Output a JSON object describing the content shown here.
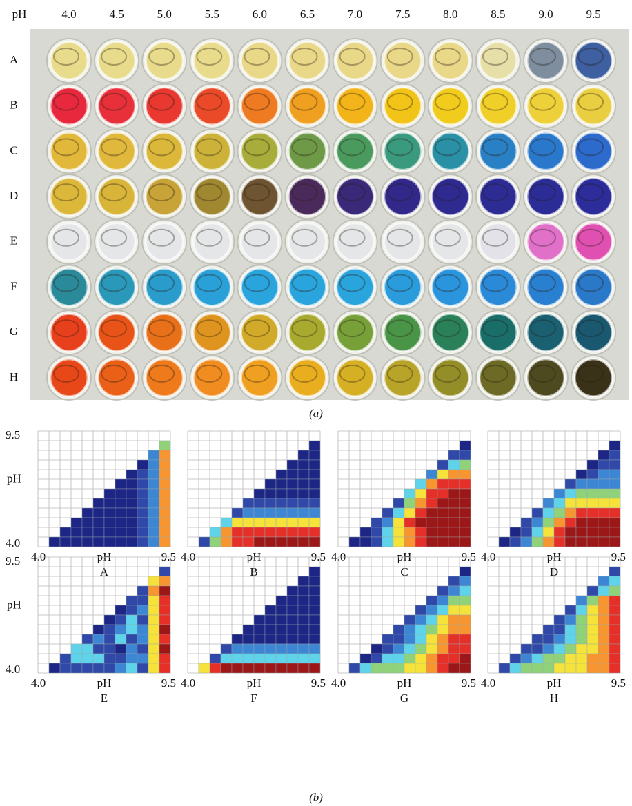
{
  "plate": {
    "corner": "pH",
    "ph_labels": [
      "4.0",
      "4.5",
      "5.0",
      "5.5",
      "6.0",
      "6.5",
      "7.0",
      "7.5",
      "8.0",
      "8.5",
      "9.0",
      "9.5"
    ],
    "rows": [
      {
        "label": "A",
        "wells": [
          "#e8dc8c",
          "#e8dc8c",
          "#e8dc8c",
          "#e8dc8c",
          "#e8d888",
          "#e8d888",
          "#e8d888",
          "#e8d888",
          "#e8d888",
          "#e6dfa8",
          "#7e8e9e",
          "#3e5fa0"
        ]
      },
      {
        "label": "B",
        "wells": [
          "#e8283c",
          "#e8303a",
          "#e83830",
          "#ea4a28",
          "#ee7a22",
          "#f0a020",
          "#f2b418",
          "#f2c418",
          "#f2cc1c",
          "#f0d028",
          "#eed03a",
          "#e8ce40"
        ]
      },
      {
        "label": "C",
        "wells": [
          "#e2b83a",
          "#e0b83c",
          "#dcb83a",
          "#cdb23a",
          "#a8ac3a",
          "#6e9a48",
          "#4a9a5e",
          "#3a9a7e",
          "#2a90a6",
          "#2a80c4",
          "#2a78cc",
          "#2c6acc"
        ]
      },
      {
        "label": "D",
        "wells": [
          "#dcb83a",
          "#d8b438",
          "#c8a438",
          "#a08830",
          "#6e5430",
          "#4a2a5a",
          "#3a2878",
          "#32288a",
          "#2e2a90",
          "#2c2c94",
          "#2c2c96",
          "#2c2c9a"
        ]
      },
      {
        "label": "E",
        "wells": [
          "#e4e6e8",
          "#e4e6e8",
          "#e4e6e8",
          "#e4e6e8",
          "#e4e6e8",
          "#e4e6e8",
          "#e4e6e8",
          "#e4e6e8",
          "#e4e6e8",
          "#e2e2e8",
          "#e070c8",
          "#e050b0"
        ]
      },
      {
        "label": "F",
        "wells": [
          "#2a8a9a",
          "#2a98b8",
          "#2a9ccc",
          "#2aa0d8",
          "#2aa4dc",
          "#2aa4dc",
          "#2aa4dc",
          "#2a9cdc",
          "#2a94dc",
          "#2a8ad8",
          "#2a80d0",
          "#2a78c8"
        ]
      },
      {
        "label": "G",
        "wells": [
          "#e8401c",
          "#e85418",
          "#e87018",
          "#e09420",
          "#d0aa28",
          "#a8aa30",
          "#78a038",
          "#4a9448",
          "#2a8058",
          "#1a6e6a",
          "#1a6070",
          "#1a5870"
        ]
      },
      {
        "label": "H",
        "wells": [
          "#e84818",
          "#ea6018",
          "#ee7a1c",
          "#f08c20",
          "#f0a020",
          "#e8ae20",
          "#d6b024",
          "#b8a428",
          "#948e28",
          "#6c6a24",
          "#4e4a20",
          "#3a3218"
        ]
      }
    ]
  },
  "captions": {
    "a": "(a)",
    "b": "(b)"
  },
  "heatmaps": {
    "axis": {
      "low": "4.0",
      "high": "9.5",
      "title": "pH"
    },
    "colormap": [
      "#1d2585",
      "#3048a8",
      "#3c86d4",
      "#5ed3ea",
      "#8fd27a",
      "#f5e23a",
      "#f79530",
      "#e5302a",
      "#9c1717"
    ],
    "panels": [
      {
        "label": "A",
        "rows": [
          [],
          [
            4
          ],
          [
            2,
            6
          ],
          [
            0,
            2,
            6
          ],
          [
            0,
            1,
            2,
            6
          ],
          [
            0,
            0,
            1,
            2,
            6
          ],
          [
            0,
            0,
            0,
            1,
            2,
            6
          ],
          [
            0,
            0,
            0,
            0,
            1,
            2,
            6
          ],
          [
            0,
            0,
            0,
            0,
            0,
            1,
            2,
            6
          ],
          [
            0,
            0,
            0,
            0,
            0,
            0,
            1,
            2,
            6
          ],
          [
            0,
            0,
            0,
            0,
            0,
            0,
            0,
            1,
            2,
            6
          ],
          [
            0,
            0,
            0,
            0,
            0,
            0,
            0,
            0,
            1,
            2,
            6
          ]
        ]
      },
      {
        "label": "B",
        "rows": [
          [],
          [
            0
          ],
          [
            0,
            0
          ],
          [
            0,
            0,
            0
          ],
          [
            0,
            0,
            0,
            0
          ],
          [
            0,
            0,
            0,
            0,
            0
          ],
          [
            0,
            0,
            0,
            0,
            0,
            0
          ],
          [
            1,
            1,
            1,
            1,
            1,
            1,
            1
          ],
          [
            1,
            2,
            2,
            2,
            2,
            2,
            2,
            2
          ],
          [
            3,
            5,
            5,
            5,
            5,
            5,
            5,
            5,
            5
          ],
          [
            3,
            6,
            7,
            7,
            7,
            7,
            7,
            7,
            7,
            7
          ],
          [
            1,
            4,
            6,
            7,
            7,
            8,
            8,
            8,
            8,
            8,
            8
          ]
        ]
      },
      {
        "label": "C",
        "rows": [
          [],
          [
            0
          ],
          [
            1,
            1
          ],
          [
            1,
            3,
            4
          ],
          [
            2,
            5,
            6,
            6
          ],
          [
            3,
            6,
            7,
            7,
            7
          ],
          [
            3,
            5,
            7,
            7,
            8,
            8
          ],
          [
            1,
            4,
            6,
            7,
            8,
            8,
            8
          ],
          [
            1,
            3,
            5,
            7,
            8,
            8,
            8,
            8
          ],
          [
            1,
            2,
            5,
            7,
            8,
            8,
            8,
            8,
            8
          ],
          [
            0,
            1,
            3,
            5,
            6,
            7,
            8,
            8,
            8,
            8
          ],
          [
            0,
            0,
            1,
            3,
            5,
            6,
            7,
            8,
            8,
            8,
            8
          ]
        ]
      },
      {
        "label": "D",
        "rows": [
          [],
          [
            0
          ],
          [
            0,
            1
          ],
          [
            0,
            1,
            1
          ],
          [
            0,
            1,
            2,
            2
          ],
          [
            1,
            2,
            2,
            2,
            2
          ],
          [
            2,
            3,
            4,
            4,
            4,
            4
          ],
          [
            2,
            3,
            5,
            5,
            5,
            5,
            5
          ],
          [
            1,
            3,
            4,
            6,
            7,
            7,
            7,
            7
          ],
          [
            1,
            2,
            4,
            6,
            7,
            8,
            8,
            8,
            8
          ],
          [
            0,
            1,
            3,
            5,
            7,
            8,
            8,
            8,
            8,
            8
          ],
          [
            0,
            1,
            2,
            4,
            6,
            7,
            8,
            8,
            8,
            8,
            8
          ]
        ]
      },
      {
        "label": "E",
        "rows": [
          [],
          [
            1
          ],
          [
            5,
            6
          ],
          [
            1,
            6,
            8
          ],
          [
            1,
            1,
            5,
            7
          ],
          [
            0,
            1,
            2,
            5,
            7
          ],
          [
            0,
            1,
            3,
            1,
            5,
            7
          ],
          [
            0,
            1,
            2,
            3,
            2,
            5,
            8
          ],
          [
            1,
            2,
            1,
            3,
            1,
            2,
            5,
            7
          ],
          [
            3,
            3,
            1,
            1,
            0,
            2,
            1,
            5,
            8
          ],
          [
            1,
            3,
            3,
            3,
            1,
            1,
            2,
            2,
            5,
            7
          ],
          [
            0,
            1,
            1,
            1,
            1,
            1,
            2,
            3,
            1,
            5,
            7
          ]
        ]
      },
      {
        "label": "F",
        "rows": [
          [],
          [
            0
          ],
          [
            0,
            0
          ],
          [
            0,
            0,
            0
          ],
          [
            0,
            0,
            0,
            0
          ],
          [
            0,
            0,
            0,
            0,
            0
          ],
          [
            0,
            0,
            0,
            0,
            0,
            0
          ],
          [
            0,
            0,
            0,
            0,
            0,
            0,
            0
          ],
          [
            0,
            0,
            0,
            0,
            0,
            0,
            0,
            0
          ],
          [
            1,
            2,
            2,
            2,
            2,
            2,
            2,
            2,
            2
          ],
          [
            1,
            3,
            3,
            3,
            3,
            3,
            3,
            3,
            3,
            3
          ],
          [
            5,
            7,
            8,
            8,
            8,
            8,
            8,
            8,
            8,
            8,
            8
          ]
        ]
      },
      {
        "label": "G",
        "rows": [
          [],
          [
            0
          ],
          [
            1,
            2
          ],
          [
            1,
            2,
            3
          ],
          [
            1,
            2,
            4,
            4
          ],
          [
            1,
            2,
            3,
            5,
            5
          ],
          [
            1,
            2,
            3,
            5,
            6,
            6
          ],
          [
            1,
            2,
            3,
            4,
            5,
            6,
            6
          ],
          [
            1,
            1,
            2,
            3,
            5,
            6,
            7,
            7
          ],
          [
            0,
            1,
            2,
            3,
            4,
            5,
            6,
            7,
            7
          ],
          [
            0,
            1,
            3,
            3,
            4,
            5,
            6,
            7,
            7,
            8
          ],
          [
            1,
            3,
            4,
            4,
            4,
            5,
            5,
            6,
            7,
            8,
            8
          ]
        ]
      },
      {
        "label": "H",
        "rows": [
          [],
          [
            1
          ],
          [
            2,
            3
          ],
          [
            1,
            3,
            4
          ],
          [
            2,
            4,
            6,
            7
          ],
          [
            1,
            3,
            5,
            6,
            7
          ],
          [
            1,
            2,
            4,
            5,
            6,
            7
          ],
          [
            1,
            1,
            3,
            4,
            5,
            6,
            7
          ],
          [
            1,
            1,
            2,
            3,
            4,
            5,
            6,
            7
          ],
          [
            1,
            1,
            2,
            3,
            4,
            5,
            5,
            6,
            7
          ],
          [
            1,
            2,
            3,
            4,
            4,
            5,
            5,
            6,
            6,
            7
          ],
          [
            1,
            3,
            4,
            4,
            4,
            5,
            5,
            5,
            6,
            6,
            7
          ]
        ]
      }
    ]
  }
}
